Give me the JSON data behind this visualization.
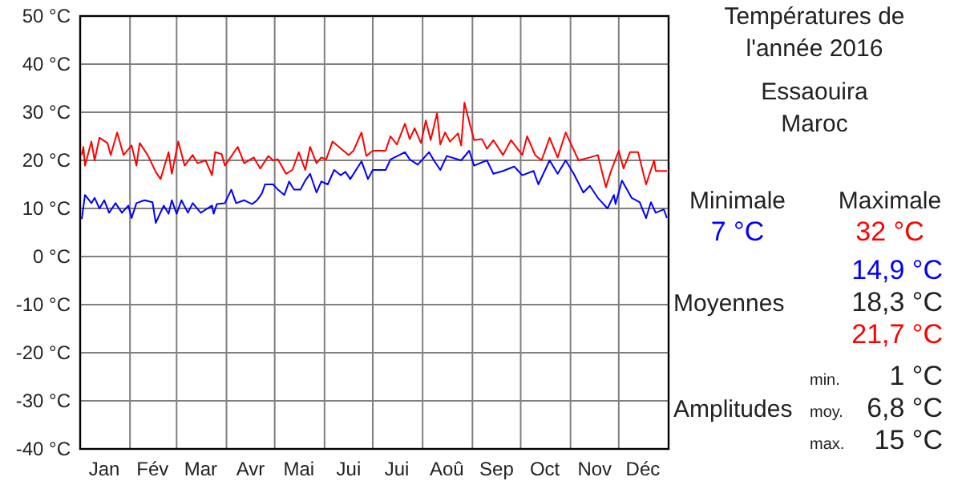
{
  "chart_data": {
    "type": "line",
    "title": "Températures de\nl'année 2016",
    "subtitle": "Essaouira\nMaroc",
    "x": [
      "2016-01-02",
      "2016-01-04",
      "2016-01-08",
      "2016-01-10",
      "2016-01-13",
      "2016-01-16",
      "2016-01-19",
      "2016-01-23",
      "2016-01-27",
      "2016-01-31",
      "2016-02-02",
      "2016-02-05",
      "2016-02-10",
      "2016-02-15",
      "2016-02-17",
      "2016-02-22",
      "2016-02-25",
      "2016-02-27",
      "2016-03-01",
      "2016-03-04",
      "2016-03-08",
      "2016-03-11",
      "2016-03-16",
      "2016-03-23",
      "2016-03-24",
      "2016-03-26",
      "2016-03-31",
      "2016-04-04",
      "2016-04-07",
      "2016-04-12",
      "2016-04-17",
      "2016-04-20",
      "2016-04-23",
      "2016-04-25",
      "2016-04-30",
      "2016-05-03",
      "2016-05-07",
      "2016-05-10",
      "2016-05-13",
      "2016-05-17",
      "2016-05-20",
      "2016-05-23",
      "2016-05-27",
      "2016-05-30",
      "2016-06-03",
      "2016-06-07",
      "2016-06-11",
      "2016-06-14",
      "2016-06-17",
      "2016-06-24",
      "2016-06-28",
      "2016-07-01",
      "2016-07-09",
      "2016-07-12",
      "2016-07-21",
      "2016-07-24",
      "2016-07-29",
      "2016-08-05",
      "2016-08-08",
      "2016-08-12",
      "2016-08-16",
      "2016-08-25",
      "2016-08-30",
      "2016-09-02",
      "2016-09-10",
      "2016-09-14",
      "2016-09-20",
      "2016-09-27",
      "2016-10-02",
      "2016-10-09",
      "2016-10-12",
      "2016-10-19",
      "2016-10-24",
      "2016-10-29",
      "2016-11-03",
      "2016-11-09",
      "2016-11-13",
      "2016-11-18",
      "2016-11-24",
      "2016-11-28",
      "2016-11-29",
      "2016-12-03",
      "2016-12-09",
      "2016-12-14",
      "2016-12-18",
      "2016-12-21",
      "2016-12-24",
      "2016-12-29",
      "2016-12-31"
    ],
    "series": [
      {
        "color": "#0000ff",
        "values": [
          7.8,
          12.8,
          11.1,
          12.2,
          10,
          11.7,
          9.1,
          11.1,
          9.1,
          10.6,
          8,
          11.1,
          11.7,
          11.3,
          7,
          10.6,
          8.9,
          11.7,
          8.9,
          11.7,
          9.1,
          11.1,
          9.1,
          10.6,
          8.9,
          10.9,
          11.1,
          13.9,
          11.1,
          11.7,
          10.9,
          11.7,
          13.1,
          15,
          15,
          13.9,
          12.8,
          15.6,
          13.9,
          13.9,
          15.8,
          17.2,
          13.3,
          15.6,
          15,
          18,
          16.9,
          17.6,
          16.1,
          19.8,
          16.1,
          18,
          18,
          20.2,
          21.7,
          20.2,
          19.1,
          21.7,
          20,
          18,
          20.9,
          20,
          22,
          18.9,
          20,
          17.2,
          17.8,
          18.7,
          16.9,
          17.8,
          15,
          20,
          17.2,
          20,
          17.2,
          13.3,
          14.7,
          12.2,
          10,
          12.8,
          10.9,
          15.8,
          12.2,
          11.3,
          8,
          11.3,
          9.1,
          9.8,
          8
        ]
      },
      {
        "color": "#ff0000",
        "x": [
          "2016-01-02",
          "2016-01-03",
          "2016-01-04",
          "2016-01-08",
          "2016-01-10",
          "2016-01-13",
          "2016-01-18",
          "2016-01-20",
          "2016-01-24",
          "2016-01-28",
          "2016-02-02",
          "2016-02-05",
          "2016-02-07",
          "2016-02-12",
          "2016-02-17",
          "2016-02-20",
          "2016-02-25",
          "2016-02-27",
          "2016-03-02",
          "2016-03-06",
          "2016-03-11",
          "2016-03-14",
          "2016-03-19",
          "2016-03-23",
          "2016-03-25",
          "2016-03-29",
          "2016-03-31",
          "2016-04-08",
          "2016-04-12",
          "2016-04-18",
          "2016-04-22",
          "2016-04-27",
          "2016-04-30",
          "2016-05-03",
          "2016-05-08",
          "2016-05-12",
          "2016-05-16",
          "2016-05-20",
          "2016-05-23",
          "2016-05-27",
          "2016-05-30",
          "2016-06-02",
          "2016-06-06",
          "2016-06-12",
          "2016-06-16",
          "2016-06-19",
          "2016-06-24",
          "2016-06-27",
          "2016-07-01",
          "2016-07-09",
          "2016-07-12",
          "2016-07-16",
          "2016-07-21",
          "2016-07-24",
          "2016-07-27",
          "2016-07-31",
          "2016-08-03",
          "2016-08-06",
          "2016-08-10",
          "2016-08-12",
          "2016-08-15",
          "2016-08-18",
          "2016-08-23",
          "2016-08-25",
          "2016-08-27",
          "2016-08-31",
          "2016-09-02",
          "2016-09-07",
          "2016-09-10",
          "2016-09-14",
          "2016-09-20",
          "2016-09-25",
          "2016-10-02",
          "2016-10-05",
          "2016-10-10",
          "2016-10-14",
          "2016-10-19",
          "2016-10-24",
          "2016-10-29",
          "2016-11-01",
          "2016-11-06",
          "2016-11-13",
          "2016-11-18",
          "2016-11-23",
          "2016-11-26",
          "2016-12-01",
          "2016-12-04",
          "2016-12-08",
          "2016-12-13",
          "2016-12-18",
          "2016-12-23",
          "2016-12-24",
          "2016-12-31"
        ],
        "values": [
          21.1,
          22.8,
          18.9,
          23.9,
          20,
          24.7,
          23.6,
          21.1,
          25.8,
          21.1,
          23.1,
          18.9,
          23.6,
          21.1,
          17.6,
          16.1,
          21.7,
          17.2,
          23.9,
          18.9,
          21.1,
          19.4,
          20,
          16.9,
          21.7,
          21.3,
          18.9,
          22.8,
          19.4,
          20.6,
          18.3,
          20.9,
          20,
          20.2,
          17.2,
          18,
          21.7,
          18,
          22.8,
          19.4,
          20.6,
          20.2,
          23.9,
          22.2,
          21.1,
          22,
          25.8,
          20.9,
          22,
          22,
          25,
          23.3,
          27.6,
          24.4,
          26.7,
          23.6,
          28.3,
          24.2,
          29.8,
          23.3,
          25.8,
          23.9,
          25.6,
          23.1,
          32,
          26.7,
          24.2,
          24.4,
          22.4,
          24.2,
          21.1,
          24.2,
          21.1,
          25,
          21.1,
          20,
          24.7,
          20.6,
          25.8,
          23.6,
          20,
          20.6,
          21.1,
          14.4,
          17.6,
          22,
          18.3,
          21.7,
          21.7,
          15,
          20,
          17.8,
          17.8
        ]
      }
    ],
    "xlim": [
      "2016-01-01",
      "2017-01-01"
    ],
    "xticks": [
      {
        "value": "2016-02-01",
        "label": null
      },
      {
        "value": "2016-03-01",
        "label": null
      },
      {
        "value": "2016-04-01",
        "label": null
      },
      {
        "value": "2016-05-01",
        "label": null
      },
      {
        "value": "2016-06-01",
        "label": null
      },
      {
        "value": "2016-07-01",
        "label": null
      },
      {
        "value": "2016-08-01",
        "label": null
      },
      {
        "value": "2016-09-01",
        "label": null
      },
      {
        "value": "2016-10-01",
        "label": null
      },
      {
        "value": "2016-11-01",
        "label": null
      },
      {
        "value": "2016-12-01",
        "label": null
      },
      {
        "value": "2016-01-16",
        "label": "Jan"
      },
      {
        "value": "2016-02-15",
        "label": "Fév"
      },
      {
        "value": "2016-03-16",
        "label": "Mar"
      },
      {
        "value": "2016-04-16",
        "label": "Avr"
      },
      {
        "value": "2016-05-16",
        "label": "Mai"
      },
      {
        "value": "2016-06-16",
        "label": "Jui"
      },
      {
        "value": "2016-07-16",
        "label": "Jui"
      },
      {
        "value": "2016-08-16",
        "label": "Aoû"
      },
      {
        "value": "2016-09-16",
        "label": "Sep"
      },
      {
        "value": "2016-10-16",
        "label": "Oct"
      },
      {
        "value": "2016-11-16",
        "label": "Nov"
      },
      {
        "value": "2016-12-16",
        "label": "Déc"
      }
    ],
    "ylim": [
      -40,
      50
    ],
    "yticks": [
      {
        "value": -40,
        "label": "-40 °C"
      },
      {
        "value": -30,
        "label": "-30 °C"
      },
      {
        "value": -20,
        "label": "-20 °C"
      },
      {
        "value": -10,
        "label": "-10 °C"
      },
      {
        "value": 0,
        "label": "0 °C"
      },
      {
        "value": 10,
        "label": "10 °C"
      },
      {
        "value": 20,
        "label": "20 °C"
      },
      {
        "value": 30,
        "label": "30 °C"
      },
      {
        "value": 40,
        "label": "40 °C"
      },
      {
        "value": 50,
        "label": "50 °C"
      }
    ],
    "grid": true,
    "line_style": "solid",
    "annotations": [
      "Minimale",
      "Maximale",
      "7 °C",
      "32 °C",
      "14,9 °C",
      "Moyennes",
      "18,3 °C",
      "21,7 °C",
      "min.",
      "1 °C",
      "Amplitudes",
      "moy.",
      "6,8 °C",
      "max.",
      "15 °C"
    ]
  }
}
